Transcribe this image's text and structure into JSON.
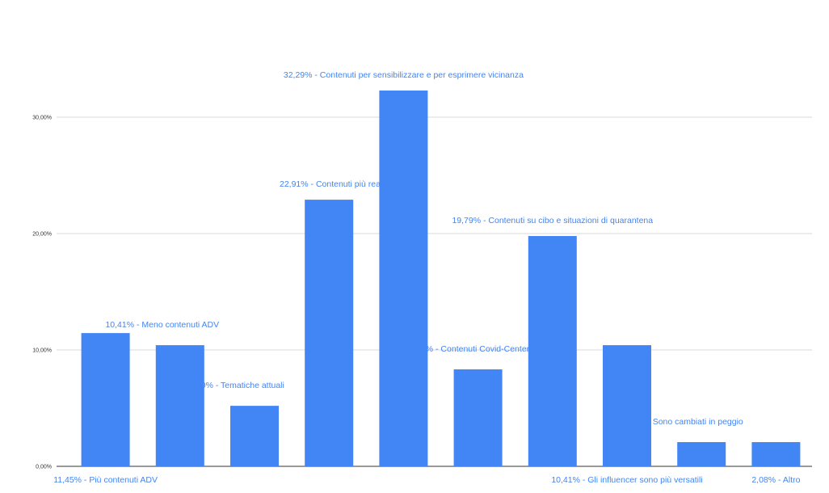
{
  "chart_data": {
    "type": "bar",
    "categories": [
      "Più contenuti ADV",
      "Meno contenuti ADV",
      "Tematiche attuali",
      "Contenuti più reali e autentici",
      "Contenuti per sensibilizzare e per esprimere vicinanza",
      "Contenuti Covid-Centered",
      "Contenuti su cibo e situazioni di quarantena",
      "Gli influencer sono più versatili",
      "Sono cambiati in peggio",
      "Altro"
    ],
    "values": [
      11.45,
      10.41,
      5.2,
      22.91,
      32.29,
      8.33,
      19.79,
      10.41,
      2.08,
      2.08
    ],
    "data_labels": [
      "11,45% - Più contenuti ADV",
      "10,41% - Meno contenuti ADV",
      "5,20% - Tematiche attuali",
      "22,91% - Contenuti più reali e autentici",
      "32,29% - Contenuti per sensibilizzare e per esprimere vicinanza",
      "8,33% - Contenuti Covid-Centered",
      "19,79% - Contenuti su cibo e situazioni di quarantena",
      "10,41% - Gli influencer sono più versatili",
      "2,08% - Sono cambiati in peggio",
      "2,08% - Altro"
    ],
    "y_ticks": [
      0,
      10,
      20,
      30
    ],
    "y_tick_labels": [
      "0,00%",
      "10,00%",
      "20,00%",
      "30,00%"
    ],
    "ylim": [
      0,
      40
    ],
    "grid": true,
    "legend": "none",
    "title": "",
    "xlabel": "",
    "ylabel": "",
    "colors": {
      "bar": "#4285f4",
      "grid": "#d9d9d9",
      "axis": "#333333",
      "label": "#4285f4"
    }
  }
}
